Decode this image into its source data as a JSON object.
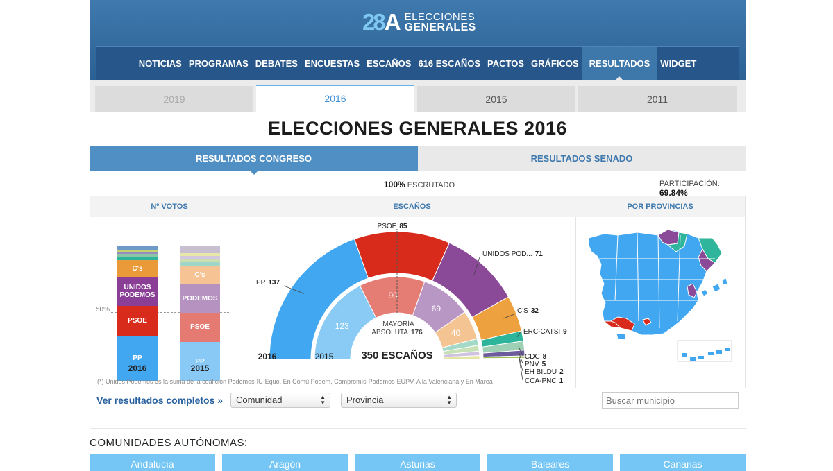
{
  "logo": {
    "number": "28",
    "letter": "A",
    "line1": "ELECCIONES",
    "line2": "GENERALES"
  },
  "nav": [
    "NOTICIAS",
    "PROGRAMAS",
    "DEBATES",
    "ENCUESTAS",
    "ESCAÑOS",
    "616 ESCAÑOS",
    "PACTOS",
    "GRÁFICOS",
    "RESULTADOS",
    "WIDGET"
  ],
  "nav_active": "RESULTADOS",
  "years": [
    "2019",
    "2016",
    "2015",
    "2011"
  ],
  "year_active": "2016",
  "year_disabled": "2019",
  "title": "ELECCIONES GENERALES 2016",
  "chambers": {
    "congreso": "RESULTADOS CONGRESO",
    "senado": "RESULTADOS SENADO"
  },
  "scrutiny": {
    "value": "100%",
    "label": "ESCRUTADO"
  },
  "participation": {
    "label": "PARTICIPACIÓN:",
    "value": "69,84%"
  },
  "columns": {
    "votes": "Nº VOTOS",
    "seats": "ESCAÑOS",
    "provinces": "POR PROVINCIAS"
  },
  "votes_chart": {
    "fifty_label": "50%",
    "bars": [
      {
        "year": "2016",
        "segments": [
          {
            "label": "PP",
            "share": 33.0,
            "color": "#42a7f1"
          },
          {
            "label": "PSOE",
            "share": 22.7,
            "color": "#d92b1c"
          },
          {
            "label": "UNIDOS PODEMOS",
            "share": 21.1,
            "color": "#8a3e96"
          },
          {
            "label": "C's",
            "share": 13.1,
            "color": "#eb9a3a"
          },
          {
            "label": "",
            "share": 2.6,
            "color": "#2fb59b"
          },
          {
            "label": "",
            "share": 2.0,
            "color": "#8bc5a6"
          },
          {
            "label": "",
            "share": 1.4,
            "color": "#9a8ac2"
          },
          {
            "label": "",
            "share": 1.4,
            "color": "#c2d36e"
          },
          {
            "label": "",
            "share": 2.7,
            "color": "#6d9ac7"
          }
        ]
      },
      {
        "year": "2015",
        "segments": [
          {
            "label": "PP",
            "share": 28.7,
            "color": "#88c9f5"
          },
          {
            "label": "PSOE",
            "share": 22.0,
            "color": "#e47a71"
          },
          {
            "label": "PODEMOS",
            "share": 20.7,
            "color": "#b592c0"
          },
          {
            "label": "C's",
            "share": 13.9,
            "color": "#f5c394"
          },
          {
            "label": "",
            "share": 3.0,
            "color": "#9fd6c7"
          },
          {
            "label": "",
            "share": 2.5,
            "color": "#c9dfb2"
          },
          {
            "label": "",
            "share": 2.2,
            "color": "#d3c8e0"
          },
          {
            "label": "",
            "share": 2.0,
            "color": "#e7e7a8"
          },
          {
            "label": "",
            "share": 5.0,
            "color": "#c8c0d0"
          }
        ]
      }
    ]
  },
  "seats_chart": {
    "outer_year": "2016",
    "inner_year": "2015",
    "total_label": "350 ESCAÑOS",
    "majority_line1": "MAYORÍA",
    "majority_line2": "ABSOLUTA",
    "majority_value": "176",
    "outer": [
      {
        "name": "PP",
        "seats": 137,
        "color": "#42a7f1"
      },
      {
        "name": "PSOE",
        "seats": 85,
        "color": "#d92b1c"
      },
      {
        "name": "UNIDOS POD...",
        "seats": 71,
        "color": "#8a4a98"
      },
      {
        "name": "C'S",
        "seats": 32,
        "color": "#eea13f"
      },
      {
        "name": "ERC-CATSI",
        "seats": 9,
        "color": "#2cb59a"
      },
      {
        "name": "CDC",
        "seats": 8,
        "color": "#9ed0b6"
      },
      {
        "name": "PNV",
        "seats": 5,
        "color": "#6c5c9b"
      },
      {
        "name": "EH BILDU",
        "seats": 2,
        "color": "#9fc255"
      },
      {
        "name": "CCA-PNC",
        "seats": 1,
        "color": "#f2d200"
      }
    ],
    "inner": [
      {
        "seats": 123,
        "label": "123",
        "color": "#8acbf5"
      },
      {
        "seats": 90,
        "label": "90",
        "color": "#e57d74"
      },
      {
        "seats": 69,
        "label": "69",
        "color": "#b897c5"
      },
      {
        "seats": 40,
        "label": "40",
        "color": "#f5c493"
      },
      {
        "seats": 9,
        "label": "",
        "color": "#a3d9c7"
      },
      {
        "seats": 8,
        "label": "",
        "color": "#c7e1b7"
      },
      {
        "seats": 6,
        "label": "",
        "color": "#cfc3e0"
      },
      {
        "seats": 5,
        "label": "",
        "color": "#e5e5a3"
      }
    ]
  },
  "map_colors": {
    "pp": "#42a7f1",
    "psoe": "#d92b1c",
    "podemos": "#8a4a98",
    "erc": "#2fb59b"
  },
  "footnote": "(*) Unidos Podemos es la suma de la coalición Podemos-IU-Equo, En Comú Podem, Compromís-Podemos-EUPV, A la Valenciana y En Marea",
  "controls": {
    "full_results": "Ver resultados completos »",
    "community_select": "Comunidad",
    "province_select": "Provincia",
    "search_placeholder": "Buscar municipio"
  },
  "communities_title": "COMUNIDADES AUTÓNOMAS:",
  "communities": [
    "Andalucía",
    "Aragón",
    "Asturias",
    "Baleares",
    "Canarias"
  ]
}
